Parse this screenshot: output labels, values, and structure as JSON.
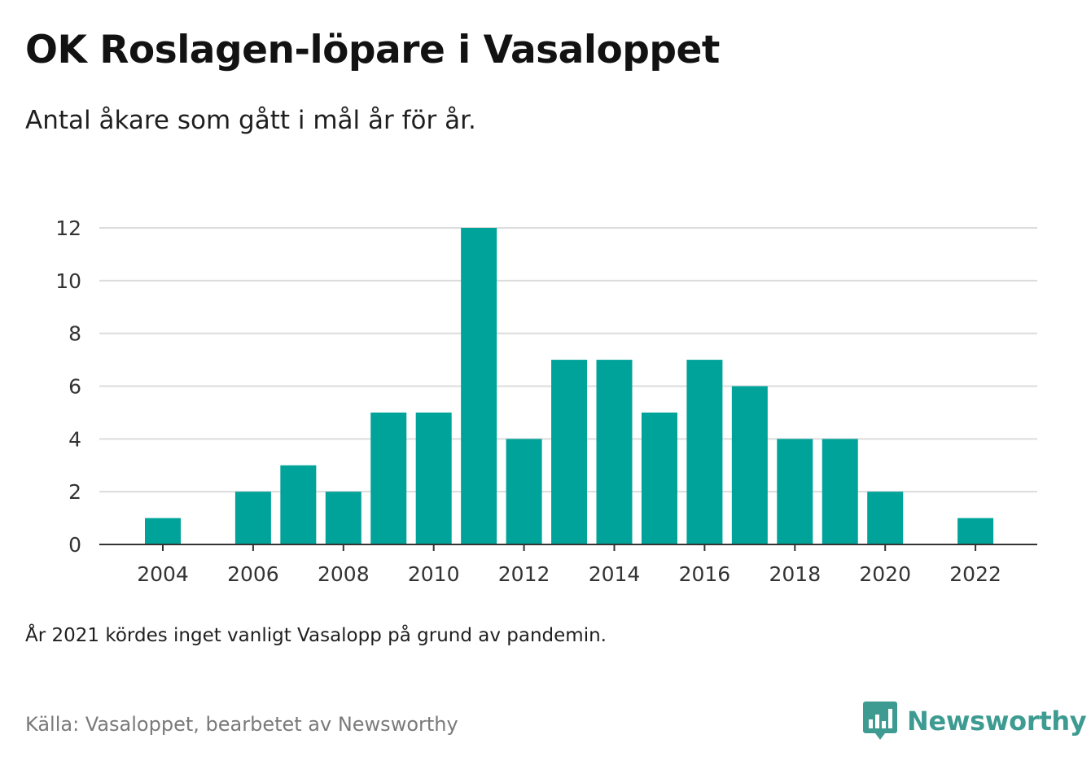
{
  "title": "OK Roslagen-löpare i Vasaloppet",
  "subtitle": "Antal åkare som gått i mål år för år.",
  "note": "År 2021 kördes inget vanligt Vasalopp på grund av pandemin.",
  "source": "Källa: Vasaloppet, bearbetet av Newsworthy",
  "logo": {
    "text": "Newsworthy",
    "icon": "newsworthy-chart-bubble-icon",
    "color": "#3d9b91"
  },
  "chart_data": {
    "type": "bar",
    "title": "OK Roslagen-löpare i Vasaloppet",
    "subtitle": "Antal åkare som gått i mål år för år.",
    "xlabel": "",
    "ylabel": "",
    "categories": [
      2004,
      2005,
      2006,
      2007,
      2008,
      2009,
      2010,
      2011,
      2012,
      2013,
      2014,
      2015,
      2016,
      2017,
      2018,
      2019,
      2020,
      2021,
      2022
    ],
    "values": [
      1,
      0,
      2,
      3,
      2,
      5,
      5,
      12,
      4,
      7,
      7,
      5,
      7,
      6,
      4,
      4,
      2,
      0,
      1
    ],
    "x_tick_labels": [
      "2004",
      "2006",
      "2008",
      "2010",
      "2012",
      "2014",
      "2016",
      "2018",
      "2020",
      "2022"
    ],
    "y_ticks": [
      0,
      2,
      4,
      6,
      8,
      10,
      12
    ],
    "ylim": [
      0,
      12
    ],
    "grid": true,
    "legend": "none",
    "bar_color": "#00a39a"
  }
}
